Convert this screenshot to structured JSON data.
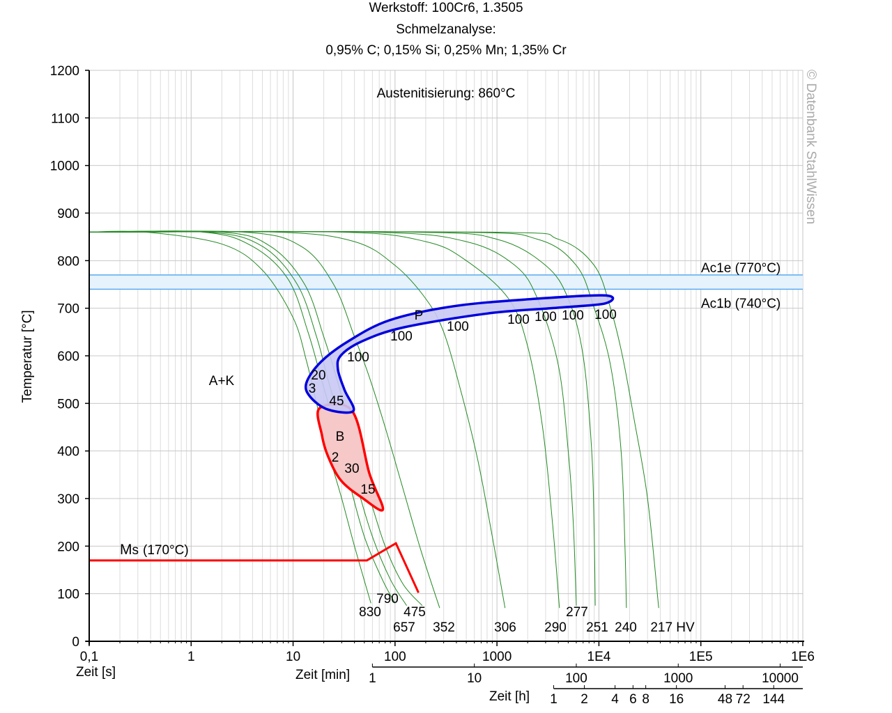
{
  "chart_data": {
    "type": "line",
    "title_lines": [
      "Werkstoff: 100Cr6, 1.3505",
      "Schmelzanalyse:",
      "0,95% C; 0,15% Si; 0,25% Mn; 1,35% Cr"
    ],
    "subtitle": "Austenitisierung: 860°C",
    "ylabel": "Temperatur [°C]",
    "ylim": [
      0,
      1200
    ],
    "yticks": [
      "0",
      "100",
      "200",
      "300",
      "400",
      "500",
      "600",
      "700",
      "800",
      "900",
      "1000",
      "1100",
      "1200"
    ],
    "xscale": "log",
    "xlim_seconds": [
      0.1,
      1000000
    ],
    "xlabel_s": "Zeit [s]",
    "xticks_s": [
      "0,1",
      "1",
      "10",
      "100",
      "1000",
      "1E4",
      "1E5",
      "1E6"
    ],
    "xlabel_min": "Zeit [min]",
    "xticks_min": [
      "1",
      "10",
      "100",
      "1000",
      "10000"
    ],
    "xlabel_h": "Zeit [h]",
    "xticks_h": [
      "1",
      "2",
      "4",
      "6",
      "8",
      "16",
      "48",
      "72",
      "144"
    ],
    "grid": true,
    "watermark": "© Datenbank StahlWissen",
    "regions": {
      "austenite_carbide": "A+K",
      "pearlite": {
        "label": "P",
        "polygon": [
          [
            11500,
            727
          ],
          [
            2080,
            719
          ],
          [
            370,
            704
          ],
          [
            89,
            675
          ],
          [
            35,
            631
          ],
          [
            18.7,
            587
          ],
          [
            13.5,
            543
          ],
          [
            14.7,
            514
          ],
          [
            22,
            487
          ],
          [
            39,
            484
          ],
          [
            32,
            528
          ],
          [
            27.5,
            572
          ],
          [
            29.5,
            601
          ],
          [
            48,
            631
          ],
          [
            123,
            660
          ],
          [
            810,
            689
          ],
          [
            3900,
            701
          ],
          [
            11500,
            710
          ]
        ],
        "color": "#0000dd",
        "fill": "#c8c8f4"
      },
      "bainite": {
        "label": "B",
        "polygon": [
          [
            18.2,
            490
          ],
          [
            19.2,
            433
          ],
          [
            22,
            389
          ],
          [
            29.5,
            338
          ],
          [
            48,
            301
          ],
          [
            76,
            277
          ],
          [
            56,
            353
          ],
          [
            38,
            484
          ]
        ],
        "color": "#ff0000",
        "fill": "#f6c8c8"
      }
    },
    "ms_line": {
      "label_main": "M",
      "label_sub": "s",
      "label_rest": "(170°C)",
      "points": [
        [
          0.1,
          170
        ],
        [
          53,
          170
        ],
        [
          102,
          206
        ],
        [
          170,
          102
        ]
      ],
      "color": "#ff0000"
    },
    "ac_lines": [
      {
        "label": "Ac1e (770°C)",
        "temperature": 770
      },
      {
        "label": "Ac1b (740°C)",
        "temperature": 740
      }
    ],
    "ac_color": "#5aaaf0",
    "phase_percentages": [
      "100",
      "100",
      "100",
      "100",
      "100",
      "100",
      "100",
      "20",
      "3",
      "45",
      "2",
      "30",
      "15"
    ],
    "curve_color": "#228822",
    "cooling_curves": [
      {
        "hardness": "830",
        "points": [
          [
            0.1,
            860
          ],
          [
            0.36,
            860
          ],
          [
            2,
            835
          ],
          [
            5,
            780
          ],
          [
            10,
            680
          ],
          [
            13.5,
            590
          ],
          [
            17,
            500
          ],
          [
            22,
            400
          ],
          [
            30,
            300
          ],
          [
            40,
            200
          ],
          [
            58,
            80
          ]
        ]
      },
      {
        "hardness": "790",
        "points": [
          [
            0.1,
            860
          ],
          [
            1.3,
            860
          ],
          [
            4,
            830
          ],
          [
            9,
            760
          ],
          [
            14,
            650
          ],
          [
            19,
            550
          ],
          [
            25,
            460
          ],
          [
            35,
            340
          ],
          [
            50,
            220
          ],
          [
            75,
            130
          ],
          [
            100,
            80
          ]
        ]
      },
      {
        "hardness": "657",
        "points": [
          [
            0.1,
            860
          ],
          [
            1.5,
            860
          ],
          [
            5,
            830
          ],
          [
            11,
            750
          ],
          [
            17,
            640
          ],
          [
            22,
            550
          ],
          [
            30,
            450
          ],
          [
            42,
            330
          ],
          [
            60,
            220
          ],
          [
            90,
            130
          ],
          [
            130,
            75
          ]
        ]
      },
      {
        "hardness": "475",
        "points": [
          [
            0.1,
            860
          ],
          [
            2,
            860
          ],
          [
            6,
            830
          ],
          [
            13,
            750
          ],
          [
            20,
            640
          ],
          [
            27,
            550
          ],
          [
            37,
            440
          ],
          [
            55,
            310
          ],
          [
            80,
            200
          ],
          [
            120,
            120
          ],
          [
            185,
            75
          ]
        ]
      },
      {
        "hardness": "352",
        "points": [
          [
            0.1,
            860
          ],
          [
            3.3,
            860
          ],
          [
            12,
            830
          ],
          [
            25,
            750
          ],
          [
            40,
            640
          ],
          [
            55,
            560
          ],
          [
            80,
            450
          ],
          [
            120,
            320
          ],
          [
            180,
            190
          ],
          [
            274,
            70
          ]
        ]
      },
      {
        "hardness": "306",
        "points": [
          [
            0.1,
            860
          ],
          [
            7,
            860
          ],
          [
            40,
            840
          ],
          [
            100,
            790
          ],
          [
            200,
            720
          ],
          [
            300,
            650
          ],
          [
            450,
            520
          ],
          [
            650,
            380
          ],
          [
            900,
            220
          ],
          [
            1200,
            70
          ]
        ]
      },
      {
        "hardness": "290",
        "points": [
          [
            0.1,
            860
          ],
          [
            30,
            860
          ],
          [
            200,
            840
          ],
          [
            500,
            800
          ],
          [
            1300,
            720
          ],
          [
            2000,
            620
          ],
          [
            2800,
            450
          ],
          [
            3500,
            250
          ],
          [
            4100,
            70
          ]
        ]
      },
      {
        "hardness": "277",
        "points": [
          [
            0.1,
            860
          ],
          [
            60,
            860
          ],
          [
            500,
            840
          ],
          [
            1500,
            790
          ],
          [
            2500,
            720
          ],
          [
            4000,
            580
          ],
          [
            5000,
            400
          ],
          [
            5600,
            250
          ],
          [
            6000,
            75
          ]
        ]
      },
      {
        "hardness": "251",
        "points": [
          [
            0.1,
            860
          ],
          [
            150,
            860
          ],
          [
            1000,
            845
          ],
          [
            3000,
            790
          ],
          [
            5000,
            720
          ],
          [
            7000,
            600
          ],
          [
            8500,
            400
          ],
          [
            9000,
            220
          ],
          [
            9200,
            75
          ]
        ]
      },
      {
        "hardness": "240",
        "points": [
          [
            0.1,
            860
          ],
          [
            400,
            860
          ],
          [
            2500,
            845
          ],
          [
            6000,
            790
          ],
          [
            9000,
            700
          ],
          [
            13000,
            580
          ],
          [
            16500,
            400
          ],
          [
            18000,
            200
          ],
          [
            18600,
            70
          ]
        ]
      },
      {
        "hardness": "217 HV",
        "points": [
          [
            0.1,
            860
          ],
          [
            900,
            860
          ],
          [
            4000,
            845
          ],
          [
            9000,
            790
          ],
          [
            13000,
            700
          ],
          [
            17000,
            600
          ],
          [
            22000,
            470
          ],
          [
            30000,
            300
          ],
          [
            38600,
            70
          ]
        ]
      }
    ]
  }
}
